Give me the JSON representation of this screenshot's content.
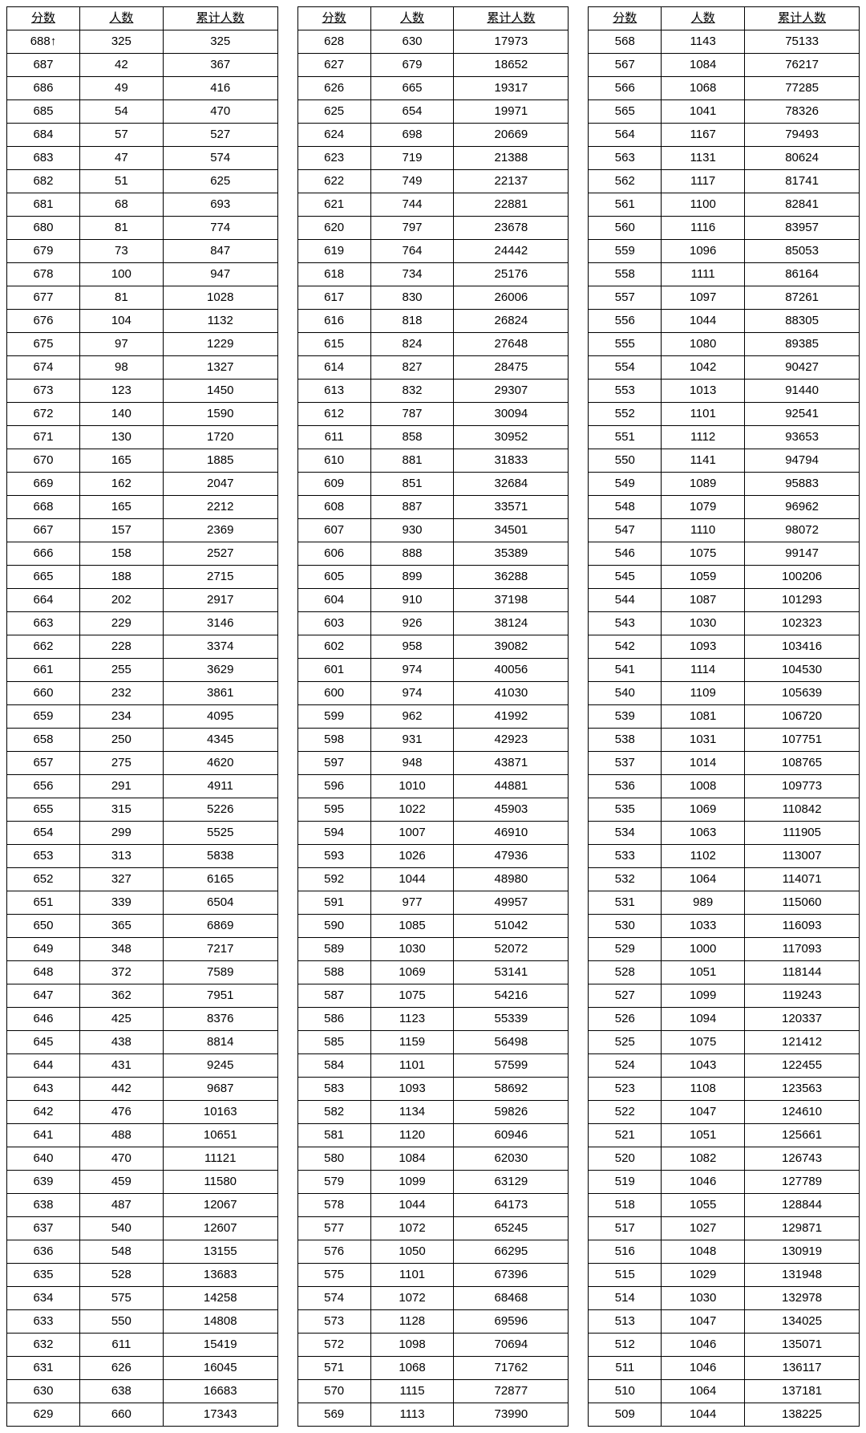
{
  "headers": {
    "score": "分数",
    "count": "人数",
    "cumulative": "累计人数"
  },
  "columns": [
    {
      "rows": [
        {
          "s": "688↑",
          "c": 325,
          "m": 325
        },
        {
          "s": 687,
          "c": 42,
          "m": 367
        },
        {
          "s": 686,
          "c": 49,
          "m": 416
        },
        {
          "s": 685,
          "c": 54,
          "m": 470
        },
        {
          "s": 684,
          "c": 57,
          "m": 527
        },
        {
          "s": 683,
          "c": 47,
          "m": 574
        },
        {
          "s": 682,
          "c": 51,
          "m": 625
        },
        {
          "s": 681,
          "c": 68,
          "m": 693
        },
        {
          "s": 680,
          "c": 81,
          "m": 774
        },
        {
          "s": 679,
          "c": 73,
          "m": 847
        },
        {
          "s": 678,
          "c": 100,
          "m": 947
        },
        {
          "s": 677,
          "c": 81,
          "m": 1028
        },
        {
          "s": 676,
          "c": 104,
          "m": 1132
        },
        {
          "s": 675,
          "c": 97,
          "m": 1229
        },
        {
          "s": 674,
          "c": 98,
          "m": 1327
        },
        {
          "s": 673,
          "c": 123,
          "m": 1450
        },
        {
          "s": 672,
          "c": 140,
          "m": 1590
        },
        {
          "s": 671,
          "c": 130,
          "m": 1720
        },
        {
          "s": 670,
          "c": 165,
          "m": 1885
        },
        {
          "s": 669,
          "c": 162,
          "m": 2047
        },
        {
          "s": 668,
          "c": 165,
          "m": 2212
        },
        {
          "s": 667,
          "c": 157,
          "m": 2369
        },
        {
          "s": 666,
          "c": 158,
          "m": 2527
        },
        {
          "s": 665,
          "c": 188,
          "m": 2715
        },
        {
          "s": 664,
          "c": 202,
          "m": 2917
        },
        {
          "s": 663,
          "c": 229,
          "m": 3146
        },
        {
          "s": 662,
          "c": 228,
          "m": 3374
        },
        {
          "s": 661,
          "c": 255,
          "m": 3629
        },
        {
          "s": 660,
          "c": 232,
          "m": 3861
        },
        {
          "s": 659,
          "c": 234,
          "m": 4095
        },
        {
          "s": 658,
          "c": 250,
          "m": 4345
        },
        {
          "s": 657,
          "c": 275,
          "m": 4620
        },
        {
          "s": 656,
          "c": 291,
          "m": 4911
        },
        {
          "s": 655,
          "c": 315,
          "m": 5226
        },
        {
          "s": 654,
          "c": 299,
          "m": 5525
        },
        {
          "s": 653,
          "c": 313,
          "m": 5838
        },
        {
          "s": 652,
          "c": 327,
          "m": 6165
        },
        {
          "s": 651,
          "c": 339,
          "m": 6504
        },
        {
          "s": 650,
          "c": 365,
          "m": 6869
        },
        {
          "s": 649,
          "c": 348,
          "m": 7217
        },
        {
          "s": 648,
          "c": 372,
          "m": 7589
        },
        {
          "s": 647,
          "c": 362,
          "m": 7951
        },
        {
          "s": 646,
          "c": 425,
          "m": 8376
        },
        {
          "s": 645,
          "c": 438,
          "m": 8814
        },
        {
          "s": 644,
          "c": 431,
          "m": 9245
        },
        {
          "s": 643,
          "c": 442,
          "m": 9687
        },
        {
          "s": 642,
          "c": 476,
          "m": 10163
        },
        {
          "s": 641,
          "c": 488,
          "m": 10651
        },
        {
          "s": 640,
          "c": 470,
          "m": 11121
        },
        {
          "s": 639,
          "c": 459,
          "m": 11580
        },
        {
          "s": 638,
          "c": 487,
          "m": 12067
        },
        {
          "s": 637,
          "c": 540,
          "m": 12607
        },
        {
          "s": 636,
          "c": 548,
          "m": 13155
        },
        {
          "s": 635,
          "c": 528,
          "m": 13683
        },
        {
          "s": 634,
          "c": 575,
          "m": 14258
        },
        {
          "s": 633,
          "c": 550,
          "m": 14808
        },
        {
          "s": 632,
          "c": 611,
          "m": 15419
        },
        {
          "s": 631,
          "c": 626,
          "m": 16045
        },
        {
          "s": 630,
          "c": 638,
          "m": 16683
        },
        {
          "s": 629,
          "c": 660,
          "m": 17343
        }
      ]
    },
    {
      "rows": [
        {
          "s": 628,
          "c": 630,
          "m": 17973
        },
        {
          "s": 627,
          "c": 679,
          "m": 18652
        },
        {
          "s": 626,
          "c": 665,
          "m": 19317
        },
        {
          "s": 625,
          "c": 654,
          "m": 19971
        },
        {
          "s": 624,
          "c": 698,
          "m": 20669
        },
        {
          "s": 623,
          "c": 719,
          "m": 21388
        },
        {
          "s": 622,
          "c": 749,
          "m": 22137
        },
        {
          "s": 621,
          "c": 744,
          "m": 22881
        },
        {
          "s": 620,
          "c": 797,
          "m": 23678
        },
        {
          "s": 619,
          "c": 764,
          "m": 24442
        },
        {
          "s": 618,
          "c": 734,
          "m": 25176
        },
        {
          "s": 617,
          "c": 830,
          "m": 26006
        },
        {
          "s": 616,
          "c": 818,
          "m": 26824
        },
        {
          "s": 615,
          "c": 824,
          "m": 27648
        },
        {
          "s": 614,
          "c": 827,
          "m": 28475
        },
        {
          "s": 613,
          "c": 832,
          "m": 29307
        },
        {
          "s": 612,
          "c": 787,
          "m": 30094
        },
        {
          "s": 611,
          "c": 858,
          "m": 30952
        },
        {
          "s": 610,
          "c": 881,
          "m": 31833
        },
        {
          "s": 609,
          "c": 851,
          "m": 32684
        },
        {
          "s": 608,
          "c": 887,
          "m": 33571
        },
        {
          "s": 607,
          "c": 930,
          "m": 34501
        },
        {
          "s": 606,
          "c": 888,
          "m": 35389
        },
        {
          "s": 605,
          "c": 899,
          "m": 36288
        },
        {
          "s": 604,
          "c": 910,
          "m": 37198
        },
        {
          "s": 603,
          "c": 926,
          "m": 38124
        },
        {
          "s": 602,
          "c": 958,
          "m": 39082
        },
        {
          "s": 601,
          "c": 974,
          "m": 40056
        },
        {
          "s": 600,
          "c": 974,
          "m": 41030
        },
        {
          "s": 599,
          "c": 962,
          "m": 41992
        },
        {
          "s": 598,
          "c": 931,
          "m": 42923
        },
        {
          "s": 597,
          "c": 948,
          "m": 43871
        },
        {
          "s": 596,
          "c": 1010,
          "m": 44881
        },
        {
          "s": 595,
          "c": 1022,
          "m": 45903
        },
        {
          "s": 594,
          "c": 1007,
          "m": 46910
        },
        {
          "s": 593,
          "c": 1026,
          "m": 47936
        },
        {
          "s": 592,
          "c": 1044,
          "m": 48980
        },
        {
          "s": 591,
          "c": 977,
          "m": 49957
        },
        {
          "s": 590,
          "c": 1085,
          "m": 51042
        },
        {
          "s": 589,
          "c": 1030,
          "m": 52072
        },
        {
          "s": 588,
          "c": 1069,
          "m": 53141
        },
        {
          "s": 587,
          "c": 1075,
          "m": 54216
        },
        {
          "s": 586,
          "c": 1123,
          "m": 55339
        },
        {
          "s": 585,
          "c": 1159,
          "m": 56498
        },
        {
          "s": 584,
          "c": 1101,
          "m": 57599
        },
        {
          "s": 583,
          "c": 1093,
          "m": 58692
        },
        {
          "s": 582,
          "c": 1134,
          "m": 59826
        },
        {
          "s": 581,
          "c": 1120,
          "m": 60946
        },
        {
          "s": 580,
          "c": 1084,
          "m": 62030
        },
        {
          "s": 579,
          "c": 1099,
          "m": 63129
        },
        {
          "s": 578,
          "c": 1044,
          "m": 64173
        },
        {
          "s": 577,
          "c": 1072,
          "m": 65245
        },
        {
          "s": 576,
          "c": 1050,
          "m": 66295
        },
        {
          "s": 575,
          "c": 1101,
          "m": 67396
        },
        {
          "s": 574,
          "c": 1072,
          "m": 68468
        },
        {
          "s": 573,
          "c": 1128,
          "m": 69596
        },
        {
          "s": 572,
          "c": 1098,
          "m": 70694
        },
        {
          "s": 571,
          "c": 1068,
          "m": 71762
        },
        {
          "s": 570,
          "c": 1115,
          "m": 72877
        },
        {
          "s": 569,
          "c": 1113,
          "m": 73990
        }
      ]
    },
    {
      "rows": [
        {
          "s": 568,
          "c": 1143,
          "m": 75133
        },
        {
          "s": 567,
          "c": 1084,
          "m": 76217
        },
        {
          "s": 566,
          "c": 1068,
          "m": 77285
        },
        {
          "s": 565,
          "c": 1041,
          "m": 78326
        },
        {
          "s": 564,
          "c": 1167,
          "m": 79493
        },
        {
          "s": 563,
          "c": 1131,
          "m": 80624
        },
        {
          "s": 562,
          "c": 1117,
          "m": 81741
        },
        {
          "s": 561,
          "c": 1100,
          "m": 82841
        },
        {
          "s": 560,
          "c": 1116,
          "m": 83957
        },
        {
          "s": 559,
          "c": 1096,
          "m": 85053
        },
        {
          "s": 558,
          "c": 1111,
          "m": 86164
        },
        {
          "s": 557,
          "c": 1097,
          "m": 87261
        },
        {
          "s": 556,
          "c": 1044,
          "m": 88305
        },
        {
          "s": 555,
          "c": 1080,
          "m": 89385
        },
        {
          "s": 554,
          "c": 1042,
          "m": 90427
        },
        {
          "s": 553,
          "c": 1013,
          "m": 91440
        },
        {
          "s": 552,
          "c": 1101,
          "m": 92541
        },
        {
          "s": 551,
          "c": 1112,
          "m": 93653
        },
        {
          "s": 550,
          "c": 1141,
          "m": 94794
        },
        {
          "s": 549,
          "c": 1089,
          "m": 95883
        },
        {
          "s": 548,
          "c": 1079,
          "m": 96962
        },
        {
          "s": 547,
          "c": 1110,
          "m": 98072
        },
        {
          "s": 546,
          "c": 1075,
          "m": 99147
        },
        {
          "s": 545,
          "c": 1059,
          "m": 100206
        },
        {
          "s": 544,
          "c": 1087,
          "m": 101293
        },
        {
          "s": 543,
          "c": 1030,
          "m": 102323
        },
        {
          "s": 542,
          "c": 1093,
          "m": 103416
        },
        {
          "s": 541,
          "c": 1114,
          "m": 104530
        },
        {
          "s": 540,
          "c": 1109,
          "m": 105639
        },
        {
          "s": 539,
          "c": 1081,
          "m": 106720
        },
        {
          "s": 538,
          "c": 1031,
          "m": 107751
        },
        {
          "s": 537,
          "c": 1014,
          "m": 108765
        },
        {
          "s": 536,
          "c": 1008,
          "m": 109773
        },
        {
          "s": 535,
          "c": 1069,
          "m": 110842
        },
        {
          "s": 534,
          "c": 1063,
          "m": 111905
        },
        {
          "s": 533,
          "c": 1102,
          "m": 113007
        },
        {
          "s": 532,
          "c": 1064,
          "m": 114071
        },
        {
          "s": 531,
          "c": 989,
          "m": 115060
        },
        {
          "s": 530,
          "c": 1033,
          "m": 116093
        },
        {
          "s": 529,
          "c": 1000,
          "m": 117093
        },
        {
          "s": 528,
          "c": 1051,
          "m": 118144
        },
        {
          "s": 527,
          "c": 1099,
          "m": 119243
        },
        {
          "s": 526,
          "c": 1094,
          "m": 120337
        },
        {
          "s": 525,
          "c": 1075,
          "m": 121412
        },
        {
          "s": 524,
          "c": 1043,
          "m": 122455
        },
        {
          "s": 523,
          "c": 1108,
          "m": 123563
        },
        {
          "s": 522,
          "c": 1047,
          "m": 124610
        },
        {
          "s": 521,
          "c": 1051,
          "m": 125661
        },
        {
          "s": 520,
          "c": 1082,
          "m": 126743
        },
        {
          "s": 519,
          "c": 1046,
          "m": 127789
        },
        {
          "s": 518,
          "c": 1055,
          "m": 128844
        },
        {
          "s": 517,
          "c": 1027,
          "m": 129871
        },
        {
          "s": 516,
          "c": 1048,
          "m": 130919
        },
        {
          "s": 515,
          "c": 1029,
          "m": 131948
        },
        {
          "s": 514,
          "c": 1030,
          "m": 132978
        },
        {
          "s": 513,
          "c": 1047,
          "m": 134025
        },
        {
          "s": 512,
          "c": 1046,
          "m": 135071
        },
        {
          "s": 511,
          "c": 1046,
          "m": 136117
        },
        {
          "s": 510,
          "c": 1064,
          "m": 137181
        },
        {
          "s": 509,
          "c": 1044,
          "m": 138225
        }
      ]
    }
  ]
}
